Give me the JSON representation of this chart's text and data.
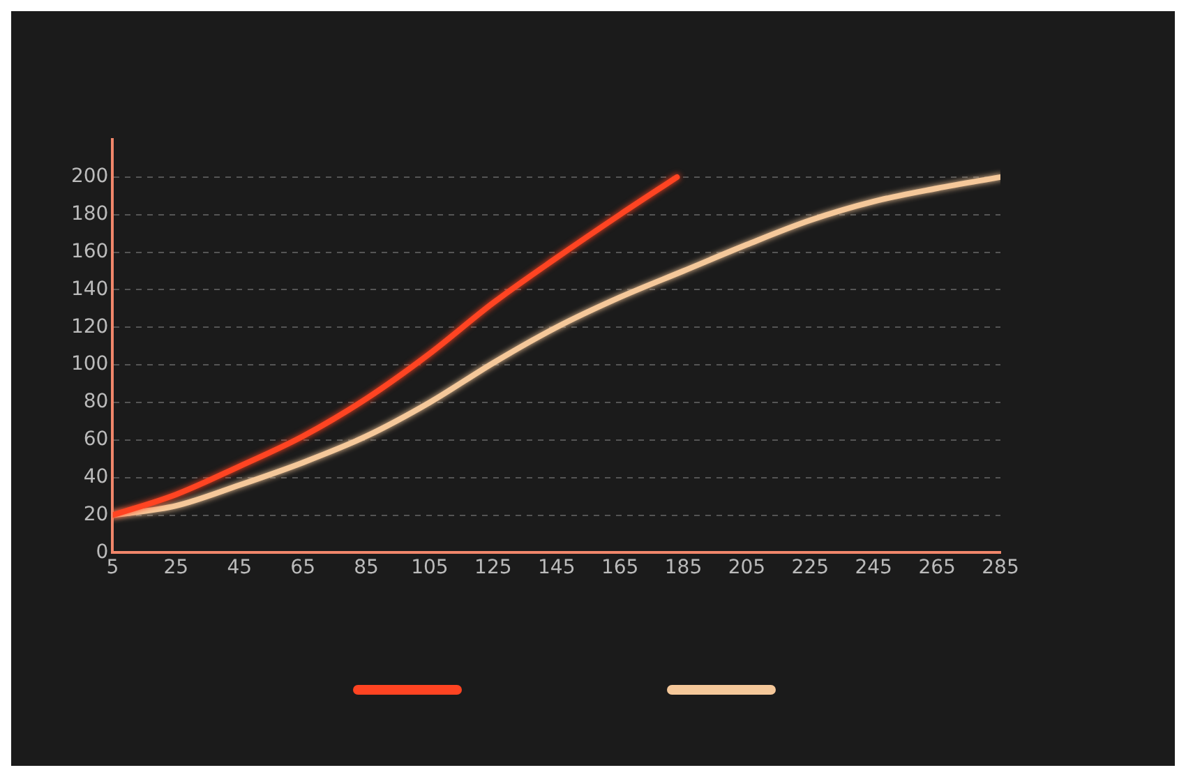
{
  "chart_data": {
    "type": "line",
    "x": [
      5,
      25,
      45,
      65,
      85,
      105,
      125,
      145,
      165,
      183
    ],
    "series": [
      {
        "color": "#ff4422",
        "values": [
          20,
          31,
          46,
          62,
          82,
          106,
          133,
          157,
          180,
          200
        ]
      },
      {
        "color": "#f5c89a",
        "x": [
          5,
          25,
          45,
          65,
          85,
          105,
          125,
          145,
          165,
          185,
          205,
          225,
          245,
          265,
          285
        ],
        "values": [
          20,
          25,
          36,
          48,
          62,
          80,
          101,
          120,
          136,
          150,
          164,
          177,
          187,
          194,
          200
        ]
      }
    ],
    "xlim": [
      5,
      285
    ],
    "xticks": [
      5,
      25,
      45,
      65,
      85,
      105,
      125,
      145,
      165,
      185,
      205,
      225,
      245,
      265,
      285
    ],
    "ylim": [
      0,
      220
    ],
    "yticks": [
      0,
      20,
      40,
      60,
      80,
      100,
      120,
      140,
      160,
      180,
      200
    ],
    "grid": "y",
    "marker": "none",
    "line_style": "solid"
  }
}
